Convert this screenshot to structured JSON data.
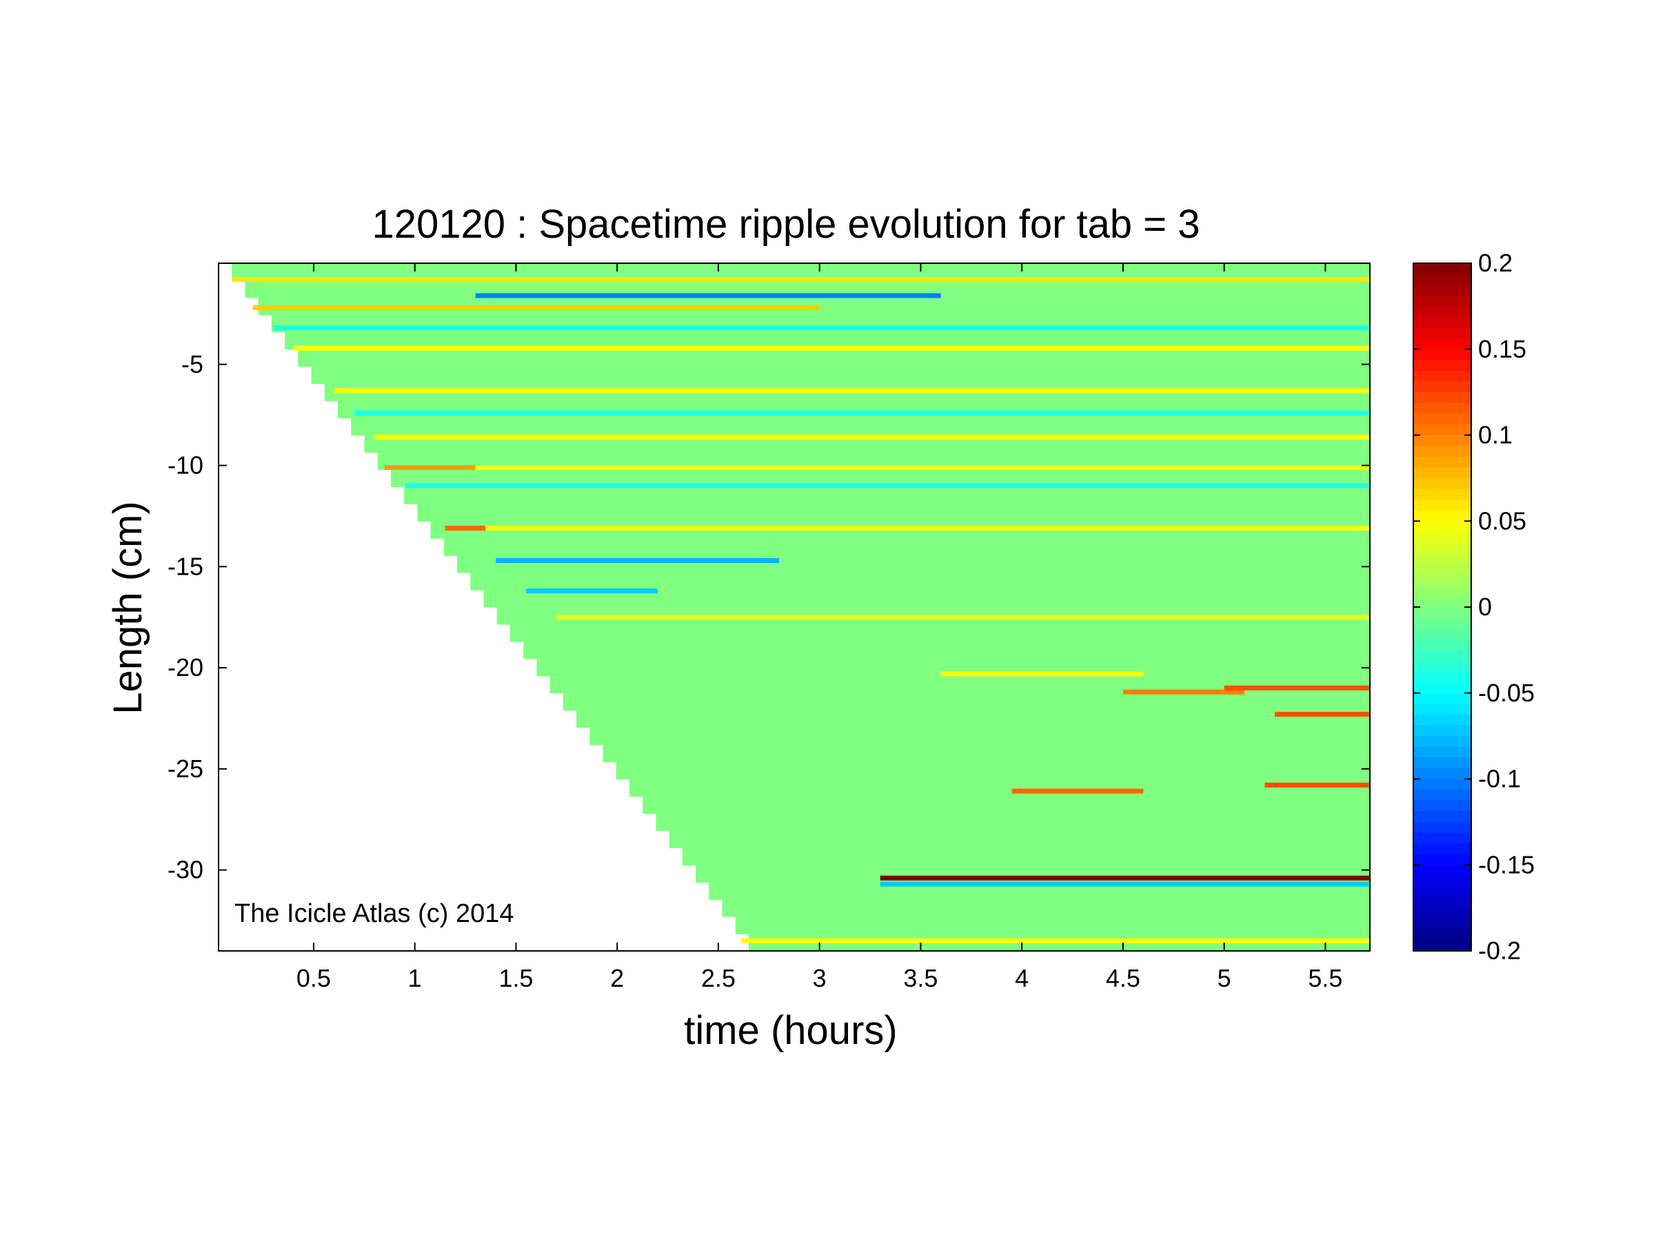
{
  "chart_data": {
    "type": "heatmap",
    "title": "120120 : Spacetime ripple evolution for tab = 3",
    "xlabel": "time (hours)",
    "ylabel": "Length (cm)",
    "xlim": [
      0.03,
      5.72
    ],
    "ylim": [
      -34,
      0
    ],
    "xticks": [
      0.5,
      1,
      1.5,
      2,
      2.5,
      3,
      3.5,
      4,
      4.5,
      5,
      5.5
    ],
    "xtick_labels": [
      "0.5",
      "1",
      "1.5",
      "2",
      "2.5",
      "3",
      "3.5",
      "4",
      "4.5",
      "5",
      "5.5"
    ],
    "yticks": [
      -5,
      -10,
      -15,
      -20,
      -25,
      -30
    ],
    "ytick_labels": [
      "-5",
      "-10",
      "-15",
      "-20",
      "-25",
      "-30"
    ],
    "colorbar": {
      "colormap": "jet",
      "clim": [
        -0.2,
        0.2
      ],
      "ticks": [
        0.2,
        0.15,
        0.1,
        0.05,
        0,
        -0.05,
        -0.1,
        -0.15,
        -0.2
      ],
      "tick_labels": [
        "0.2",
        "0.15",
        "0.1",
        "0.05",
        "0",
        "-0.05",
        "-0.1",
        "-0.15",
        "-0.2"
      ]
    },
    "coverage_front": {
      "description": "data exists only for t >= growth time of each length",
      "points": [
        [
          0.03,
          0
        ],
        [
          2.65,
          -34
        ]
      ]
    },
    "background_value": 0.0,
    "ripple_bands": [
      {
        "y": -0.8,
        "value": 0.06,
        "x_start": 0.1,
        "x_end": 5.72
      },
      {
        "y": -1.6,
        "value": -0.1,
        "x_start": 1.3,
        "x_end": 3.6
      },
      {
        "y": -2.2,
        "value": 0.07,
        "x_start": 0.2,
        "x_end": 3.0
      },
      {
        "y": -3.2,
        "value": -0.04,
        "x_start": 0.3,
        "x_end": 5.72
      },
      {
        "y": -4.2,
        "value": 0.05,
        "x_start": 0.4,
        "x_end": 5.72
      },
      {
        "y": -6.3,
        "value": 0.05,
        "x_start": 0.6,
        "x_end": 5.72
      },
      {
        "y": -7.4,
        "value": -0.04,
        "x_start": 0.7,
        "x_end": 5.72
      },
      {
        "y": -8.6,
        "value": 0.05,
        "x_start": 0.8,
        "x_end": 5.72
      },
      {
        "y": -10.1,
        "value": 0.09,
        "x_start": 0.85,
        "x_end": 1.3
      },
      {
        "y": -10.1,
        "value": 0.05,
        "x_start": 1.3,
        "x_end": 5.72
      },
      {
        "y": -11.0,
        "value": -0.04,
        "x_start": 0.95,
        "x_end": 5.72
      },
      {
        "y": -13.1,
        "value": 0.11,
        "x_start": 1.15,
        "x_end": 1.35
      },
      {
        "y": -13.1,
        "value": 0.05,
        "x_start": 1.35,
        "x_end": 5.72
      },
      {
        "y": -14.7,
        "value": -0.08,
        "x_start": 1.4,
        "x_end": 2.8
      },
      {
        "y": -16.2,
        "value": -0.07,
        "x_start": 1.55,
        "x_end": 2.2
      },
      {
        "y": -17.5,
        "value": 0.04,
        "x_start": 1.7,
        "x_end": 5.72
      },
      {
        "y": -20.3,
        "value": 0.05,
        "x_start": 3.6,
        "x_end": 4.6
      },
      {
        "y": -21.2,
        "value": 0.1,
        "x_start": 4.5,
        "x_end": 5.1
      },
      {
        "y": -21.0,
        "value": 0.12,
        "x_start": 5.0,
        "x_end": 5.72
      },
      {
        "y": -22.3,
        "value": 0.12,
        "x_start": 5.25,
        "x_end": 5.72
      },
      {
        "y": -26.1,
        "value": 0.11,
        "x_start": 3.95,
        "x_end": 4.6
      },
      {
        "y": -25.8,
        "value": 0.12,
        "x_start": 5.2,
        "x_end": 5.72
      },
      {
        "y": -30.4,
        "value": 0.2,
        "x_start": 3.3,
        "x_end": 5.72
      },
      {
        "y": -30.7,
        "value": -0.07,
        "x_start": 3.3,
        "x_end": 5.72
      },
      {
        "y": -33.5,
        "value": 0.05,
        "x_start": 2.6,
        "x_end": 5.72
      }
    ]
  },
  "watermark": "The Icicle Atlas (c) 2014"
}
